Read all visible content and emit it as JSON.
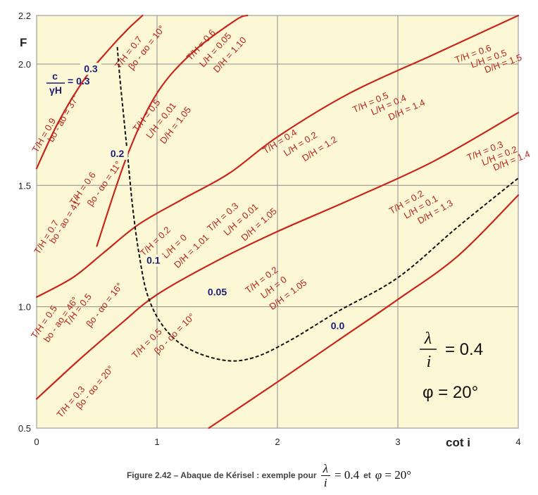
{
  "chart_data": {
    "type": "line",
    "xlabel": "cot i",
    "ylabel": "F",
    "xlim": [
      0,
      4
    ],
    "ylim": [
      0.5,
      2.2
    ],
    "x_ticks": [
      "0",
      "1",
      "2",
      "3",
      "4"
    ],
    "y_ticks": [
      "0.5",
      "1.0",
      "1.5",
      "2.0",
      "2.2"
    ],
    "grid": true,
    "background": "#fcf7d4",
    "curve_color": "#c8261d",
    "envelope_color": "#111111",
    "c_label_color": "#1d1d7a",
    "annotation": {
      "lambda_num": "λ",
      "lambda_den": "i",
      "lambda_value": "= 0.4",
      "phi": "φ = 20°"
    },
    "c_ratio_label": {
      "num": "c",
      "den": "γH",
      "value": "= 0.3"
    },
    "series": [
      {
        "c_ratio": "0.3",
        "points": [
          [
            0,
            1.57
          ],
          [
            0.18,
            1.76
          ],
          [
            0.4,
            1.94
          ],
          [
            0.6,
            2.06
          ],
          [
            0.75,
            2.14
          ],
          [
            0.88,
            2.2
          ]
        ],
        "labels": [
          "T/H = 0.9",
          "bo - ao = 37°",
          "T/H = 0.7",
          "βo - αo = 10°"
        ]
      },
      {
        "c_ratio": "0.2",
        "points": [
          [
            0.5,
            1.25
          ],
          [
            0.75,
            1.62
          ],
          [
            1.0,
            1.88
          ],
          [
            1.3,
            2.05
          ],
          [
            1.65,
            2.18
          ],
          [
            1.75,
            2.2
          ]
        ],
        "labels": [
          "T/H = 0.7",
          "bo - ao = 41°",
          "T/H = 0.6",
          "βo - αo = 11°",
          "T/H = 0.5",
          "L/H = 0.01",
          "D/H = 1.05",
          "T/H = 0.6",
          "L/H = 0.05",
          "D/H = 1.10"
        ]
      },
      {
        "c_ratio": "0.1",
        "points": [
          [
            0,
            1.04
          ],
          [
            0.3,
            1.12
          ],
          [
            0.55,
            1.22
          ],
          [
            0.85,
            1.34
          ],
          [
            1.2,
            1.44
          ],
          [
            1.6,
            1.55
          ],
          [
            2.0,
            1.7
          ],
          [
            2.6,
            1.88
          ],
          [
            3.3,
            2.04
          ],
          [
            4.0,
            2.2
          ]
        ],
        "labels": [
          "T/H = 0.5",
          "bo - ao = 46°",
          "T/H = 0.5",
          "βo - αo = 16°",
          "T/H = 0.2",
          "L/H = 0",
          "D/H = 1.01",
          "T/H = 0.3",
          "L/H = 0.01",
          "D/H = 1.05",
          "T/H = 0.4",
          "L/H = 0.2",
          "D/H = 1.2",
          "T/H = 0.5",
          "L/H = 0.4",
          "D/H = 1.4",
          "T/H = 0.6",
          "L/H = 0.5",
          "D/H = 1.5"
        ]
      },
      {
        "c_ratio": "0.05",
        "points": [
          [
            0,
            0.62
          ],
          [
            0.35,
            0.78
          ],
          [
            0.7,
            0.93
          ],
          [
            1.0,
            1.05
          ],
          [
            1.5,
            1.19
          ],
          [
            2.0,
            1.31
          ],
          [
            2.6,
            1.44
          ],
          [
            3.3,
            1.6
          ],
          [
            4.0,
            1.8
          ]
        ],
        "labels": [
          "T/H = 0.3",
          "βo - αo = 20°",
          "T/H = 0.5",
          "βo - αo = 10°",
          "T/H = 0.2",
          "L/H = 0",
          "D/H = 1.05",
          "T/H = 0.2",
          "L/H = 0.1",
          "D/H = 1.3",
          "T/H = 0.3",
          "L/H = 0.2",
          "D/H = 1.4"
        ]
      },
      {
        "c_ratio": "0.0",
        "points": [
          [
            1.43,
            0.5
          ],
          [
            2.0,
            0.69
          ],
          [
            2.5,
            0.86
          ],
          [
            3.0,
            1.03
          ],
          [
            3.5,
            1.21
          ],
          [
            4.0,
            1.46
          ]
        ],
        "labels": []
      }
    ],
    "envelope": {
      "style": "dashed",
      "points": [
        [
          0.67,
          2.07
        ],
        [
          0.69,
          1.95
        ],
        [
          0.72,
          1.8
        ],
        [
          0.76,
          1.6
        ],
        [
          0.8,
          1.4
        ],
        [
          0.85,
          1.22
        ],
        [
          0.92,
          1.05
        ],
        [
          1.05,
          0.92
        ],
        [
          1.25,
          0.83
        ],
        [
          1.55,
          0.78
        ],
        [
          1.8,
          0.79
        ],
        [
          2.1,
          0.86
        ],
        [
          2.5,
          0.98
        ],
        [
          3.0,
          1.12
        ],
        [
          3.5,
          1.33
        ],
        [
          4.0,
          1.53
        ]
      ]
    },
    "c_labels": [
      {
        "text": "0.3",
        "x": 0.45,
        "y": 1.97
      },
      {
        "text": "0.2",
        "x": 0.67,
        "y": 1.62
      },
      {
        "text": "0.1",
        "x": 0.97,
        "y": 1.18
      },
      {
        "text": "0.05",
        "x": 1.5,
        "y": 1.05
      },
      {
        "text": "0.0",
        "x": 2.5,
        "y": 0.91
      }
    ]
  },
  "caption": {
    "text": "Figure 2.42 – Abaque de Kérisel : exemple  pour",
    "frac_num": "λ",
    "frac_den": "i",
    "eq1": "= 0.4",
    "and": "et",
    "phi": "φ",
    "eq2": "= 20°"
  }
}
